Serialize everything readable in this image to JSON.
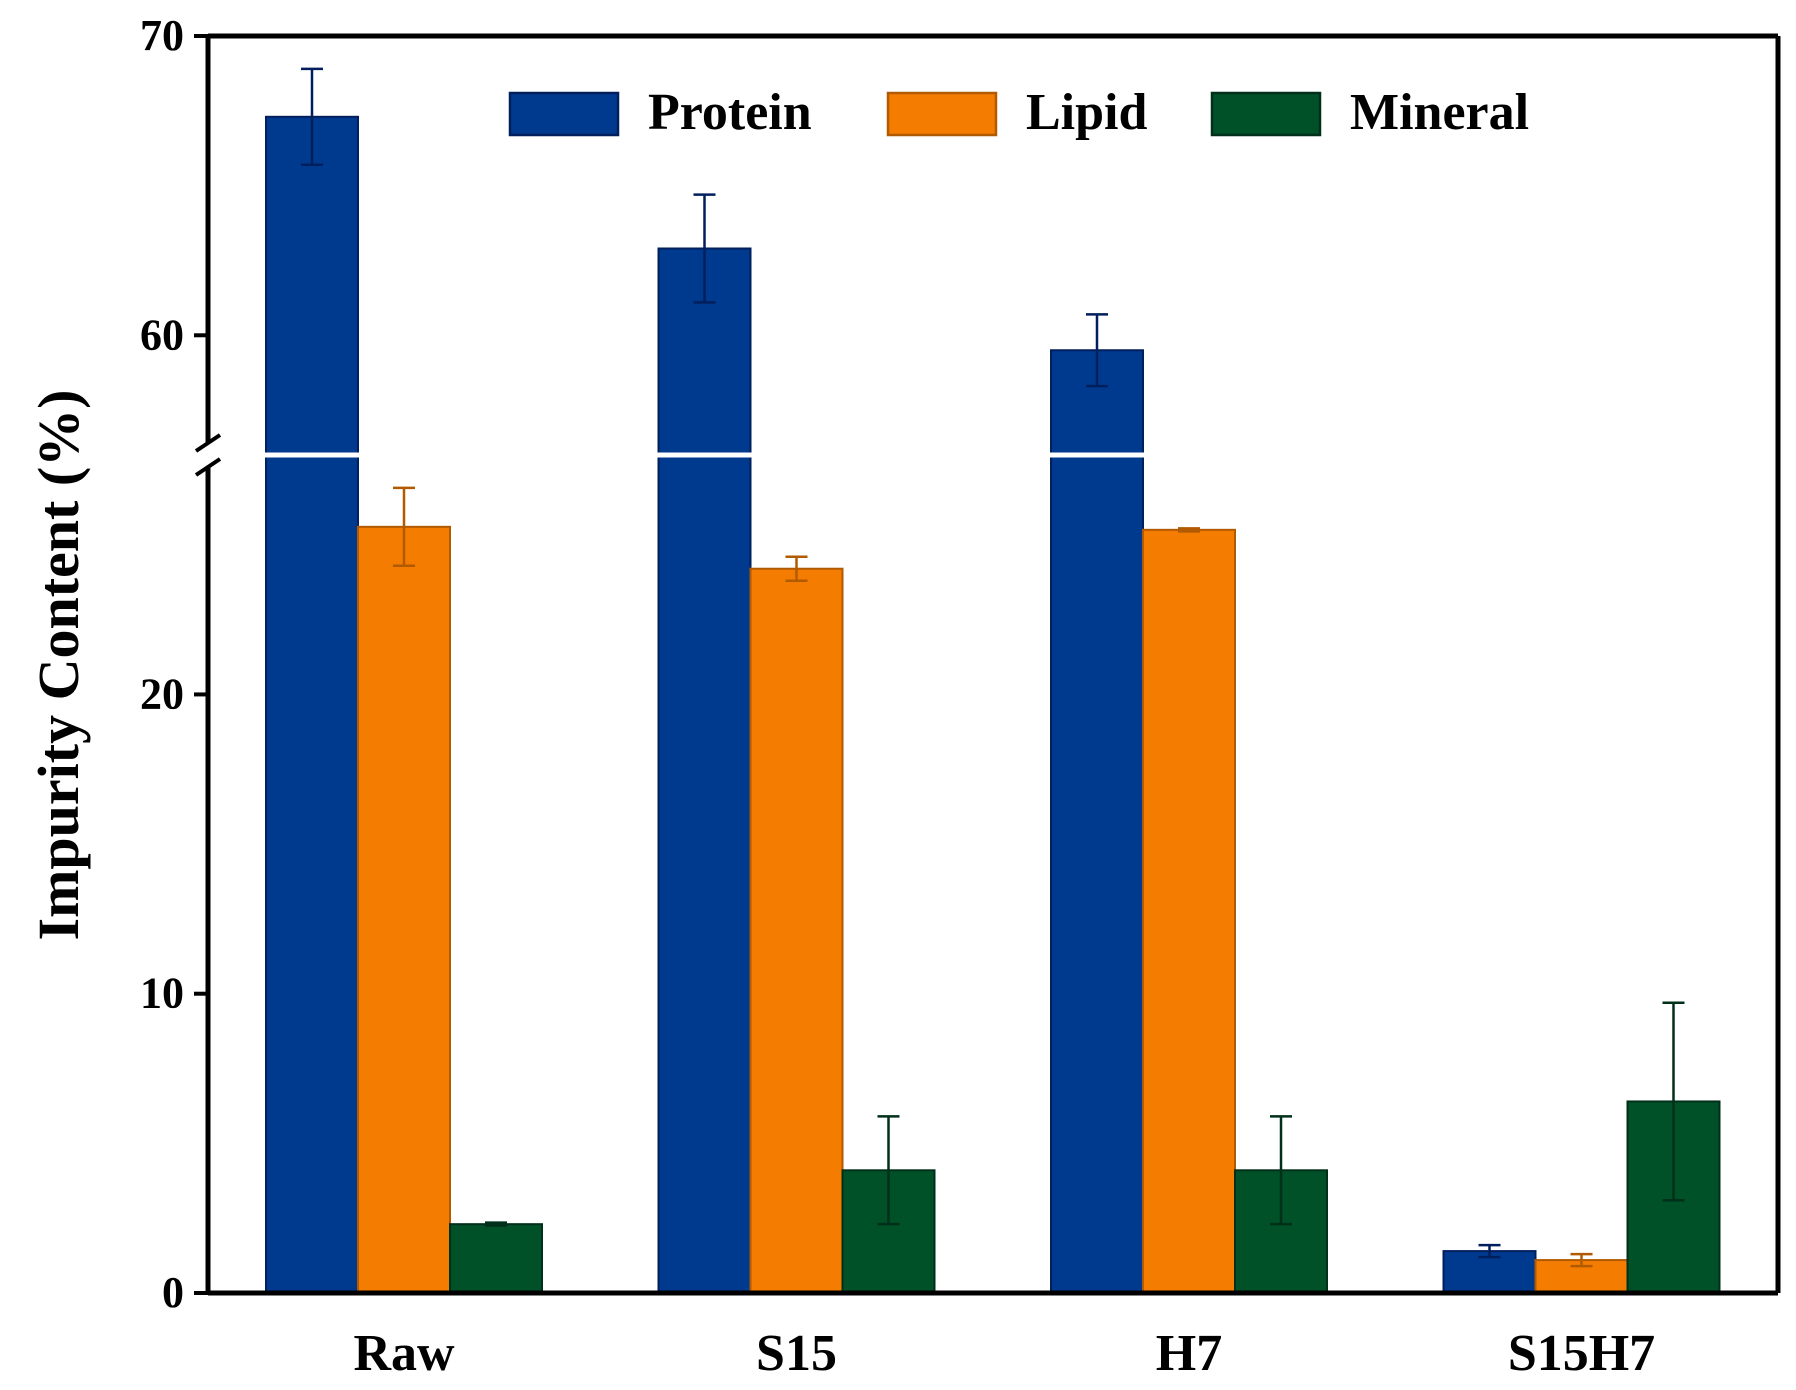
{
  "chart_data": {
    "type": "bar",
    "title": "",
    "xlabel": "",
    "ylabel": "Impurity Content (%)",
    "categories": [
      "Raw",
      "S15",
      "H7",
      "S15H7"
    ],
    "series": [
      {
        "name": "Protein",
        "color": "#003a8f",
        "edge": "#001f5c",
        "values": [
          67.3,
          62.9,
          59.5,
          1.4
        ],
        "errors": [
          1.6,
          1.8,
          1.2,
          0.2
        ]
      },
      {
        "name": "Lipid",
        "color": "#f47c00",
        "edge": "#b25a00",
        "values": [
          25.6,
          24.2,
          25.5,
          1.1
        ],
        "errors": [
          1.3,
          0.4,
          0.05,
          0.2
        ]
      },
      {
        "name": "Mineral",
        "color": "#005128",
        "edge": "#00301a",
        "values": [
          2.3,
          4.1,
          4.1,
          6.4
        ],
        "errors": [
          0.05,
          1.8,
          1.8,
          3.3
        ]
      }
    ],
    "axis_break": {
      "lower": [
        0,
        28
      ],
      "upper": [
        56,
        70
      ]
    },
    "lower_ticks": [
      0,
      10,
      20
    ],
    "upper_ticks": [
      60,
      70
    ],
    "ylim": [
      0,
      70
    ],
    "legend": "top"
  }
}
